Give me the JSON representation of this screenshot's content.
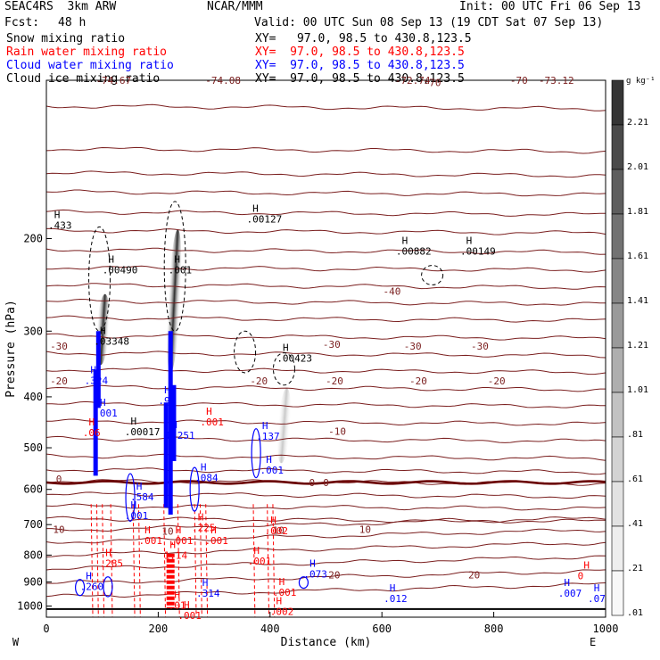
{
  "header": {
    "model": "SEAC4RS  3km ARW",
    "org": "NCAR/MMM",
    "init": "Init: 00 UTC Fri 06 Sep 13",
    "fcst_label": "Fcst:",
    "fcst_value": "48 h",
    "valid": "Valid: 00 UTC Sun 08 Sep 13 (19 CDT Sat 07 Sep 13)"
  },
  "fields": [
    {
      "name": "Snow mixing ratio",
      "color": "#000000",
      "xy": "XY=   97.0, 98.5 to 430.8,123.5"
    },
    {
      "name": "Rain water mixing ratio",
      "color": "#ff0000",
      "xy": "XY=  97.0, 98.5 to 430.8,123.5"
    },
    {
      "name": "Cloud water mixing ratio",
      "color": "#0000ff",
      "xy": "XY=  97.0, 98.5 to 430.8,123.5"
    },
    {
      "name": "Cloud ice mixing ratio",
      "color": "#000000",
      "xy": "XY=  97.0, 98.5 to 430.8,123.5"
    }
  ],
  "chart_data": {
    "type": "cross-section",
    "xlabel": "Distance (km)",
    "ylabel": "Pressure (hPa)",
    "xlim": [
      0,
      1000
    ],
    "ylim": [
      1050,
      100
    ],
    "y_scale": "log",
    "x_ticks": [
      0,
      200,
      400,
      600,
      800,
      1000
    ],
    "y_ticks": [
      200,
      300,
      400,
      500,
      600,
      700,
      800,
      900,
      1000
    ],
    "x_end_labels": {
      "left": "W",
      "right": "E"
    },
    "colorbar": {
      "unit": "g kg⁻¹",
      "ticks": [
        "2.21",
        "2.01",
        "1.81",
        "1.61",
        "1.41",
        "1.21",
        "1.01",
        ".81",
        ".61",
        ".41",
        ".21",
        ".01"
      ],
      "colors": [
        "#353535",
        "#4a4a4a",
        "#5e5e5e",
        "#727272",
        "#868686",
        "#9a9a9a",
        "#aeaeae",
        "#c2c2c2",
        "#d3d3d3",
        "#e2e2e2",
        "#eeeeee",
        "#f8f8f8"
      ]
    },
    "temperature_labels": [
      {
        "x": 120,
        "p": 100,
        "t": "-74.67"
      },
      {
        "x": 316,
        "p": 100,
        "t": "-74.08"
      },
      {
        "x": 655,
        "p": 100,
        "t": "-72.74"
      },
      {
        "x": 912,
        "p": 100,
        "t": "-73.12"
      },
      {
        "x": 690,
        "p": 101,
        "t": "-70"
      },
      {
        "x": 845,
        "p": 100,
        "t": "-70"
      },
      {
        "x": 618,
        "p": 252,
        "t": "-40"
      },
      {
        "x": -20,
        "p": 320,
        "t": "-30"
      },
      {
        "x": 510,
        "p": 318,
        "t": "-30"
      },
      {
        "x": 655,
        "p": 320,
        "t": "-30"
      },
      {
        "x": 775,
        "p": 320,
        "t": "-30"
      },
      {
        "x": -40,
        "p": 373,
        "t": "-20"
      },
      {
        "x": 380,
        "p": 373,
        "t": "-20"
      },
      {
        "x": 515,
        "p": 373,
        "t": "-20"
      },
      {
        "x": 665,
        "p": 373,
        "t": "-20"
      },
      {
        "x": 805,
        "p": 373,
        "t": "-20"
      },
      {
        "x": 520,
        "p": 465,
        "t": "-10"
      },
      {
        "x": -60,
        "p": 573,
        "t": "0"
      },
      {
        "x": 475,
        "p": 582,
        "t": "0"
      },
      {
        "x": 500,
        "p": 582,
        "t": "0"
      },
      {
        "x": -40,
        "p": 714,
        "t": "10"
      },
      {
        "x": 217,
        "p": 720,
        "t": "10"
      },
      {
        "x": 415,
        "p": 718,
        "t": "10"
      },
      {
        "x": 570,
        "p": 714,
        "t": "10"
      },
      {
        "x": 515,
        "p": 873,
        "t": "20"
      },
      {
        "x": 765,
        "p": 873,
        "t": "20"
      }
    ],
    "maxima": [
      {
        "field": "snow",
        "x": -28,
        "p": 190,
        "v": ".433"
      },
      {
        "field": "snow",
        "x": 100,
        "p": 231,
        "v": ".00490"
      },
      {
        "field": "snow",
        "x": 218,
        "p": 231,
        "v": ".001"
      },
      {
        "field": "snow",
        "x": 358,
        "p": 185,
        "v": ".00127"
      },
      {
        "field": "snow",
        "x": 625,
        "p": 213,
        "v": ".00882"
      },
      {
        "field": "snow",
        "x": 740,
        "p": 213,
        "v": ".00149"
      },
      {
        "field": "ice",
        "x": 85,
        "p": 316,
        "v": ".03348"
      },
      {
        "field": "ice",
        "x": 412,
        "p": 340,
        "v": ".00423"
      },
      {
        "field": "ice",
        "x": 140,
        "p": 470,
        "v": ".00017"
      },
      {
        "field": "cloud",
        "x": 68,
        "p": 375,
        "v": ".324"
      },
      {
        "field": "cloud",
        "x": 85,
        "p": 433,
        "v": ".001"
      },
      {
        "field": "cloud",
        "x": 200,
        "p": 410,
        "v": ".92"
      },
      {
        "field": "cloud",
        "x": 213,
        "p": 477,
        "v": "1.251"
      },
      {
        "field": "cloud",
        "x": 265,
        "p": 574,
        "v": ".084"
      },
      {
        "field": "cloud",
        "x": 150,
        "p": 624,
        "v": ".584"
      },
      {
        "field": "cloud",
        "x": 140,
        "p": 678,
        "v": ".001"
      },
      {
        "field": "cloud",
        "x": 375,
        "p": 479,
        "v": ".137"
      },
      {
        "field": "cloud",
        "x": 382,
        "p": 556,
        "v": ".001"
      },
      {
        "field": "cloud",
        "x": 460,
        "p": 876,
        "v": ".073"
      },
      {
        "field": "cloud",
        "x": 60,
        "p": 925,
        "v": ".260"
      },
      {
        "field": "cloud",
        "x": 268,
        "p": 952,
        "v": ".314"
      },
      {
        "field": "cloud",
        "x": 603,
        "p": 975,
        "v": ".012"
      },
      {
        "field": "cloud",
        "x": 915,
        "p": 952,
        "v": ".007"
      },
      {
        "field": "cloud",
        "x": 992,
        "p": 975,
        "v": ".07"
      },
      {
        "field": "rain",
        "x": 65,
        "p": 471,
        "v": ".06"
      },
      {
        "field": "rain",
        "x": 275,
        "p": 450,
        "v": ".001"
      },
      {
        "field": "rain",
        "x": 260,
        "p": 714,
        "v": ".225"
      },
      {
        "field": "rain",
        "x": 390,
        "p": 725,
        "v": ".002"
      },
      {
        "field": "rain",
        "x": 165,
        "p": 757,
        "v": ".001"
      },
      {
        "field": "rain",
        "x": 220,
        "p": 757,
        "v": ".001"
      },
      {
        "field": "rain",
        "x": 283,
        "p": 757,
        "v": ".001"
      },
      {
        "field": "rain",
        "x": 210,
        "p": 806,
        "v": "1.14"
      },
      {
        "field": "rain",
        "x": 360,
        "p": 828,
        "v": ".001"
      },
      {
        "field": "rain",
        "x": 95,
        "p": 835,
        "v": ".285"
      },
      {
        "field": "rain",
        "x": 405,
        "p": 949,
        "v": ".001"
      },
      {
        "field": "rain",
        "x": 218,
        "p": 1003,
        "v": ".01"
      },
      {
        "field": "rain",
        "x": 400,
        "p": 1031,
        "v": ".002"
      },
      {
        "field": "rain",
        "x": 235,
        "p": 1049,
        "v": ".001"
      },
      {
        "field": "rain",
        "x": 950,
        "p": 883,
        "v": "0"
      }
    ],
    "shaded_plumes": [
      {
        "x_top": 105,
        "p_top": 255,
        "x_bot": 97,
        "p_bot": 348,
        "peak": 1.0
      },
      {
        "x_top": 235,
        "p_top": 192,
        "x_bot": 222,
        "p_bot": 360,
        "peak": 1.15
      },
      {
        "x_top": 430,
        "p_top": 385,
        "x_bot": 420,
        "p_bot": 535,
        "peak": 0.45
      }
    ],
    "cloud_columns": [
      {
        "x": 88,
        "p_top": 355,
        "p_bot": 565
      },
      {
        "x": 93,
        "p_top": 300,
        "p_bot": 420
      },
      {
        "x": 222,
        "p_top": 300,
        "p_bot": 670
      },
      {
        "x": 214,
        "p_top": 410,
        "p_bot": 650
      },
      {
        "x": 228,
        "p_top": 380,
        "p_bot": 530
      }
    ],
    "rain_column": {
      "x": 222,
      "p_top": 795,
      "p_bot": 1010
    }
  }
}
